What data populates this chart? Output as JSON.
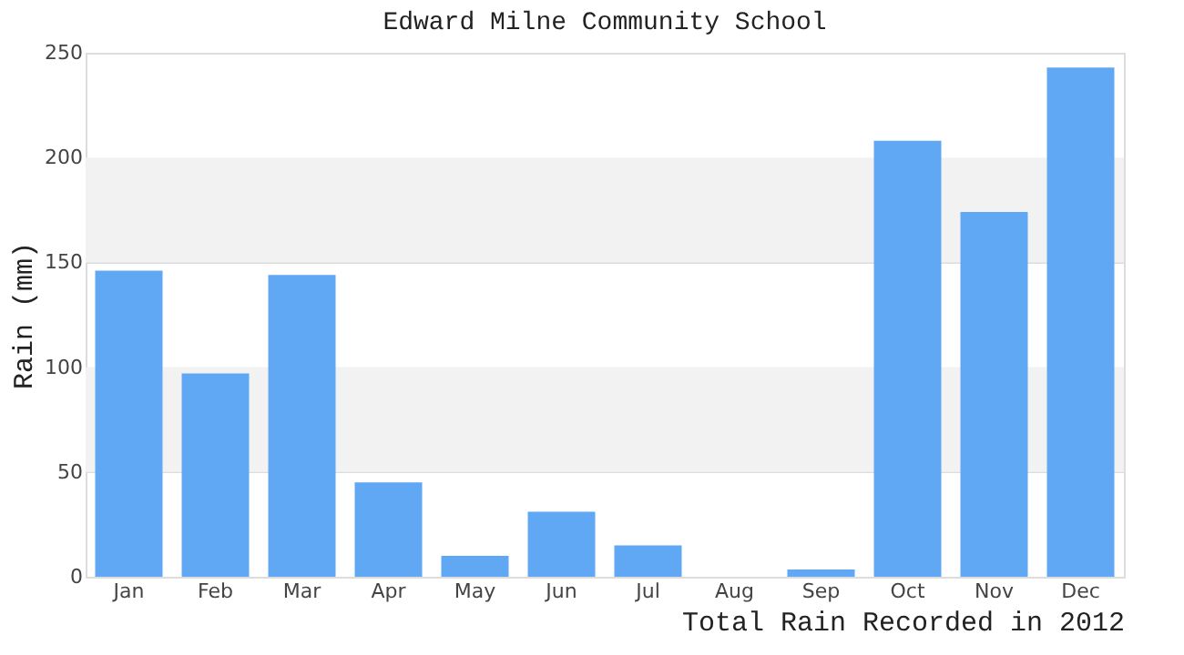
{
  "chart_data": {
    "type": "bar",
    "title": "Edward Milne Community School",
    "xlabel": "Total Rain Recorded in 2012",
    "ylabel": "Rain (mm)",
    "categories": [
      "Jan",
      "Feb",
      "Mar",
      "Apr",
      "May",
      "Jun",
      "Jul",
      "Aug",
      "Sep",
      "Oct",
      "Nov",
      "Dec"
    ],
    "values": [
      146,
      97,
      144,
      45,
      10,
      31,
      15,
      0,
      3.5,
      208,
      174,
      243
    ],
    "color": "#60a8f4",
    "ylim": [
      0,
      250
    ],
    "yticks": [
      0,
      50,
      100,
      150,
      200,
      250
    ],
    "grid": "y",
    "bands": [
      {
        "axis": "y",
        "from": 50,
        "to": 100,
        "label": null,
        "color": "#f2f2f2"
      },
      {
        "axis": "y",
        "from": 150,
        "to": 200,
        "label": null,
        "color": "#f2f2f2"
      }
    ]
  }
}
